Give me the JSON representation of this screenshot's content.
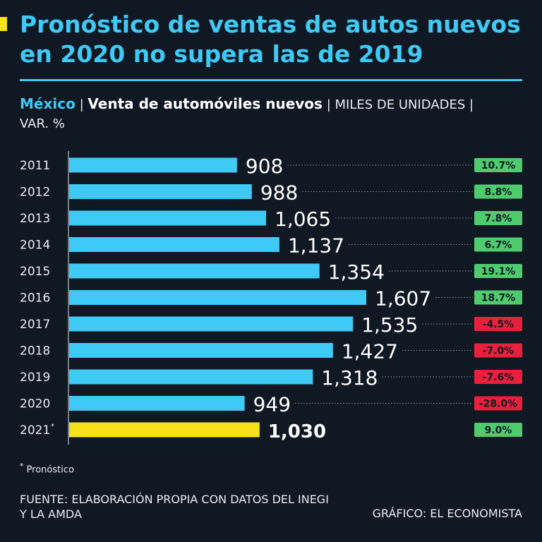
{
  "header": {
    "title": "Pronóstico de ventas de autos nuevos en 2020 no supera las de 2019",
    "country": "México",
    "metric": "Venta de automóviles nuevos",
    "units": "MILES DE UNIDADES",
    "var_label": "VAR. %",
    "separator": "|"
  },
  "colors": {
    "bar": "#3fc9f5",
    "bar_highlight": "#f7e21a",
    "positive": "#4fcb6e",
    "negative": "#e8203c",
    "accent": "#3fc9f5",
    "background": "#0f1823"
  },
  "chart_data": {
    "type": "bar",
    "orientation": "horizontal",
    "title": "Venta de automóviles nuevos",
    "xlabel": "MILES DE UNIDADES",
    "ylabel": "",
    "xlim": [
      0,
      1607
    ],
    "categories": [
      "2011",
      "2012",
      "2013",
      "2014",
      "2015",
      "2016",
      "2017",
      "2018",
      "2019",
      "2020",
      "2021"
    ],
    "category_marks": [
      "",
      "",
      "",
      "",
      "",
      "",
      "",
      "",
      "",
      "",
      "*"
    ],
    "values": [
      908,
      988,
      1065,
      1137,
      1354,
      1607,
      1535,
      1427,
      1318,
      949,
      1030
    ],
    "value_labels": [
      "908",
      "988",
      "1,065",
      "1,137",
      "1,354",
      "1,607",
      "1,535",
      "1,427",
      "1,318",
      "949",
      "1,030"
    ],
    "var_pct": [
      10.7,
      8.8,
      7.8,
      6.7,
      19.1,
      18.7,
      -4.5,
      -7.0,
      -7.6,
      -28.0,
      9.0
    ],
    "var_labels": [
      "10.7%",
      "8.8%",
      "7.8%",
      "6.7%",
      "19.1%",
      "18.7%",
      "-4.5%",
      "-7.0%",
      "-7.6%",
      "-28.0%",
      "9.0%"
    ],
    "highlight_index": 10
  },
  "footer": {
    "footnote_mark": "*",
    "footnote": "Pronóstico",
    "source": "FUENTE: ELABORACIÓN PROPIA CON DATOS DEL INEGI Y LA AMDA",
    "credit": "GRÁFICO: EL ECONOMISTA"
  }
}
